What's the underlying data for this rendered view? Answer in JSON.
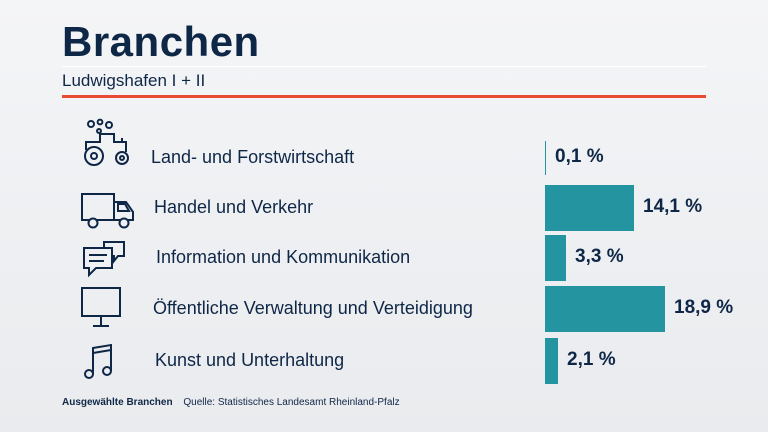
{
  "header": {
    "title": "Branchen",
    "subtitle": "Ludwigshafen I + II"
  },
  "colors": {
    "accent": "#e84a33",
    "bar": "#2495a0",
    "text": "#0f2747"
  },
  "chart_data": {
    "type": "bar",
    "orientation": "horizontal",
    "title": "Branchen",
    "subtitle": "Ludwigshafen I + II",
    "categories": [
      "Land- und Forstwirtschaft",
      "Handel und Verkehr",
      "Information und Kommunikation",
      "Öffentliche Verwaltung und Verteidigung",
      "Kunst und Unterhaltung"
    ],
    "values": [
      0.1,
      14.1,
      3.3,
      18.9,
      2.1
    ],
    "value_labels": [
      "0,1 %",
      "14,1 %",
      "3,3 %",
      "18,9 %",
      "2,1 %"
    ],
    "icons": [
      "tractor-icon",
      "truck-icon",
      "chat-bubbles-icon",
      "monitor-icon",
      "music-note-icon"
    ],
    "unit": "%",
    "grid": false,
    "legend": "none"
  },
  "footer": {
    "note": "Ausgewählte Branchen",
    "source": "Quelle: Statistisches Landesamt Rheinland-Pfalz"
  }
}
